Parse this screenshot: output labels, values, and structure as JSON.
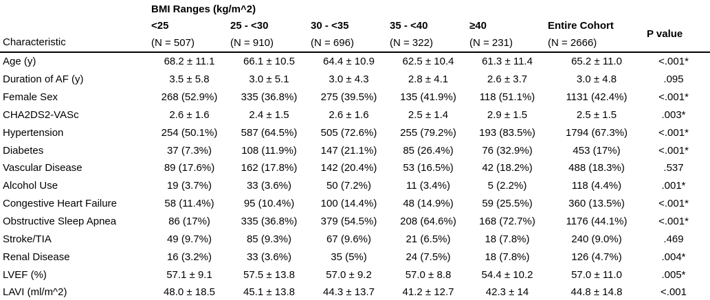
{
  "table": {
    "group_header": "BMI Ranges (kg/m^2)",
    "characteristic_label": "Characteristic",
    "p_value_label": "P value",
    "text_color": "#000000",
    "rule_color": "#000000",
    "columns": [
      {
        "label": "<25",
        "n": "(N = 507)"
      },
      {
        "label": "25 - <30",
        "n": "(N = 910)"
      },
      {
        "label": "30 - <35",
        "n": "(N = 696)"
      },
      {
        "label": "35 - <40",
        "n": "(N = 322)"
      },
      {
        "label": "≥40",
        "n": "(N = 231)"
      },
      {
        "label": "Entire Cohort",
        "n": "(N = 2666)"
      }
    ],
    "rows": [
      {
        "characteristic": "Age (y)",
        "values": [
          "68.2 ± 11.1",
          "66.1 ± 10.5",
          "64.4 ± 10.9",
          "62.5 ± 10.4",
          "61.3 ± 11.4",
          "65.2 ± 11.0"
        ],
        "p": "<.001*"
      },
      {
        "characteristic": "Duration of AF (y)",
        "values": [
          "3.5 ± 5.8",
          "3.0 ± 5.1",
          "3.0 ± 4.3",
          "2.8 ± 4.1",
          "2.6 ± 3.7",
          "3.0 ± 4.8"
        ],
        "p": ".095"
      },
      {
        "characteristic": "Female Sex",
        "values": [
          "268 (52.9%)",
          "335 (36.8%)",
          "275 (39.5%)",
          "135 (41.9%)",
          "118 (51.1%)",
          "1131 (42.4%)"
        ],
        "p": "<.001*"
      },
      {
        "characteristic": "CHA2DS2-VASc",
        "values": [
          "2.6 ± 1.6",
          "2.4 ± 1.5",
          "2.6 ± 1.6",
          "2.5 ± 1.4",
          "2.9 ± 1.5",
          "2.5 ± 1.5"
        ],
        "p": ".003*"
      },
      {
        "characteristic": "Hypertension",
        "values": [
          "254 (50.1%)",
          "587 (64.5%)",
          "505 (72.6%)",
          "255 (79.2%)",
          "193 (83.5%)",
          "1794 (67.3%)"
        ],
        "p": "<.001*"
      },
      {
        "characteristic": "Diabetes",
        "values": [
          "37 (7.3%)",
          "108 (11.9%)",
          "147 (21.1%)",
          "85 (26.4%)",
          "76 (32.9%)",
          "453 (17%)"
        ],
        "p": "<.001*"
      },
      {
        "characteristic": "Vascular Disease",
        "values": [
          "89 (17.6%)",
          "162 (17.8%)",
          "142 (20.4%)",
          "53 (16.5%)",
          "42 (18.2%)",
          "488 (18.3%)"
        ],
        "p": ".537"
      },
      {
        "characteristic": "Alcohol Use",
        "values": [
          "19 (3.7%)",
          "33 (3.6%)",
          "50 (7.2%)",
          "11 (3.4%)",
          "5 (2.2%)",
          "118 (4.4%)"
        ],
        "p": ".001*"
      },
      {
        "characteristic": "Congestive Heart Failure",
        "values": [
          "58 (11.4%)",
          "95 (10.4%)",
          "100 (14.4%)",
          "48 (14.9%)",
          "59 (25.5%)",
          "360 (13.5%)"
        ],
        "p": "<.001*"
      },
      {
        "characteristic": "Obstructive Sleep Apnea",
        "values": [
          "86 (17%)",
          "335 (36.8%)",
          "379 (54.5%)",
          "208 (64.6%)",
          "168 (72.7%)",
          "1176 (44.1%)"
        ],
        "p": "<.001*"
      },
      {
        "characteristic": "Stroke/TIA",
        "values": [
          "49 (9.7%)",
          "85 (9.3%)",
          "67 (9.6%)",
          "21 (6.5%)",
          "18 (7.8%)",
          "240 (9.0%)"
        ],
        "p": ".469"
      },
      {
        "characteristic": "Renal Disease",
        "values": [
          "16 (3.2%)",
          "33 (3.6%)",
          "35 (5%)",
          "24 (7.5%)",
          "18 (7.8%)",
          "126 (4.7%)"
        ],
        "p": ".004*"
      },
      {
        "characteristic": "LVEF (%)",
        "values": [
          "57.1 ± 9.1",
          "57.5 ± 13.8",
          "57.0 ± 9.2",
          "57.0 ± 8.8",
          "54.4 ± 10.2",
          "57.0 ± 11.0"
        ],
        "p": ".005*"
      },
      {
        "characteristic": "LAVI (ml/m^2)",
        "values": [
          "48.0 ± 18.5",
          "45.1 ± 13.8",
          "44.3 ± 13.7",
          "41.2 ± 12.7",
          "42.3 ± 14",
          "44.8 ± 14.8"
        ],
        "p": "<.001"
      }
    ]
  }
}
